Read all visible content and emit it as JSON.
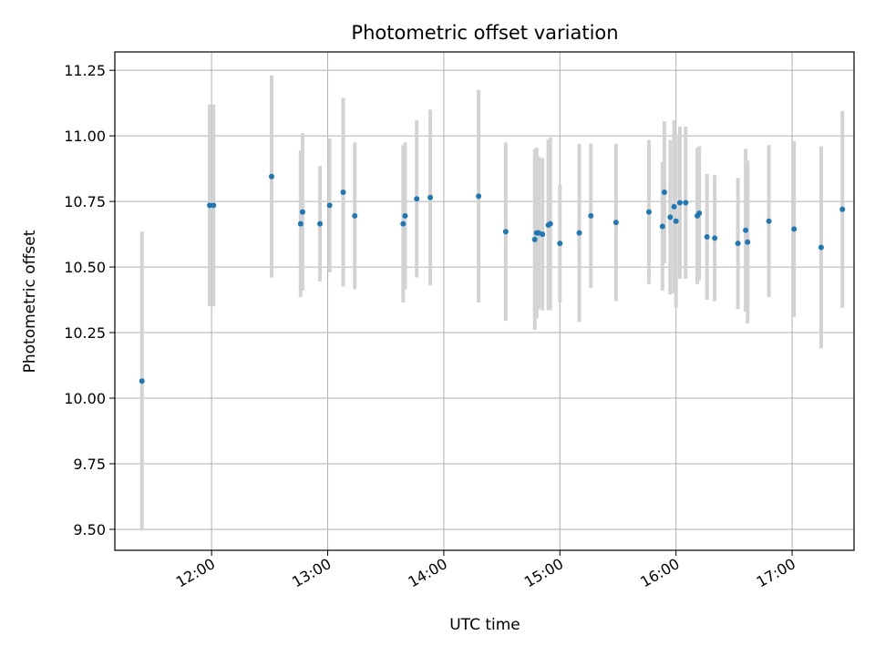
{
  "chart_data": {
    "type": "scatter",
    "title": "Photometric offset variation",
    "xlabel": "UTC time",
    "ylabel": "Photometric offset",
    "xlim": [
      "11:10",
      "17:32"
    ],
    "ylim": [
      9.42,
      11.32
    ],
    "x_ticks": [
      "12:00",
      "13:00",
      "14:00",
      "15:00",
      "16:00",
      "17:00"
    ],
    "y_ticks": [
      "9.50",
      "9.75",
      "10.00",
      "10.25",
      "10.50",
      "10.75",
      "11.00",
      "11.25"
    ],
    "grid": true,
    "colors": {
      "points": "#1f77b4",
      "error_bars": "#d3d3d3",
      "grid": "#b0b0b0"
    },
    "series": [
      {
        "x": [
          "11:24",
          "11:59",
          "12:01",
          "12:31",
          "12:46",
          "12:47",
          "12:56",
          "13:01",
          "13:08",
          "13:14",
          "13:39",
          "13:40",
          "13:46",
          "13:53",
          "14:18",
          "14:32",
          "14:47",
          "14:48",
          "14:49",
          "14:51",
          "14:54",
          "14:55",
          "15:00",
          "15:10",
          "15:16",
          "15:29",
          "15:46",
          "15:53",
          "15:54",
          "15:57",
          "15:59",
          "16:00",
          "16:02",
          "16:05",
          "16:11",
          "16:12",
          "16:16",
          "16:20",
          "16:32",
          "16:36",
          "16:37",
          "16:48",
          "17:01",
          "17:15"
        ],
        "y": [
          10.065,
          10.735,
          10.735,
          10.845,
          10.665,
          10.71,
          10.665,
          10.735,
          10.785,
          10.695,
          10.665,
          10.695,
          10.76,
          10.765,
          10.77,
          10.635,
          10.605,
          10.63,
          10.63,
          10.625,
          10.66,
          10.665,
          10.59,
          10.63,
          10.695,
          10.67,
          10.71,
          10.655,
          10.785,
          10.69,
          10.73,
          10.675,
          10.745,
          10.745,
          10.695,
          10.705,
          10.615,
          10.61,
          10.59,
          10.64,
          10.595,
          10.675,
          10.645,
          10.575
        ],
        "yerr": [
          0.57,
          0.385,
          0.385,
          0.385,
          0.28,
          0.3,
          0.22,
          0.255,
          0.36,
          0.28,
          0.3,
          0.28,
          0.3,
          0.335,
          0.405,
          0.34,
          0.345,
          0.325,
          0.29,
          0.29,
          0.325,
          0.33,
          0.225,
          0.34,
          0.275,
          0.3,
          0.275,
          0.245,
          0.27,
          0.295,
          0.33,
          0.33,
          0.29,
          0.29,
          0.26,
          0.255,
          0.24,
          0.24,
          0.25,
          0.31,
          0.31,
          0.29,
          0.335,
          0.385
        ]
      }
    ],
    "extra_point": {
      "x": "17:26",
      "y": 10.72,
      "yerr": 0.375
    }
  }
}
